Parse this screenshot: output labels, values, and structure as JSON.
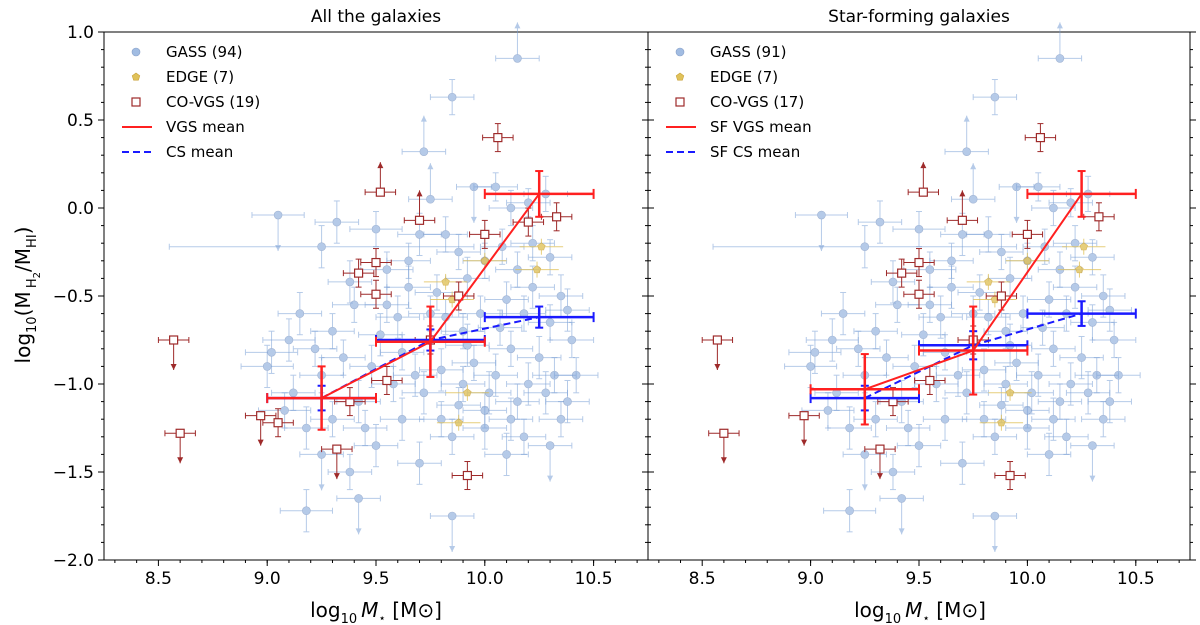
{
  "figure": {
    "ylabel_main": "log",
    "ylabel_sub": "10",
    "ylabel_open": "(M",
    "ylabel_h2": "H",
    "ylabel_h2_sub": "2",
    "ylabel_slash": "/M",
    "ylabel_hi": "HI",
    "ylabel_close": ")",
    "xlabel_main": "log",
    "xlabel_sub": "10",
    "xlabel_mstar": "M",
    "xlabel_star": "⋆",
    "xlabel_unit": " [M",
    "xlabel_odot": "⊙",
    "xlabel_end": "]"
  },
  "colors": {
    "gass": "#7aa0d6",
    "edge": "#e0c25a",
    "covgs": "#9e2a2a",
    "vgs_mean": "#ff2020",
    "cs_mean": "#1a1aff"
  },
  "chart_data": [
    {
      "type": "scatter",
      "title": "All the galaxies",
      "xlabel": "log10 M⋆ [M⊙]",
      "ylabel": "log10(M_H2/M_HI)",
      "xlim": [
        8.25,
        10.75
      ],
      "ylim": [
        -2.0,
        1.0
      ],
      "xticks": [
        "8.5",
        "9.0",
        "9.5",
        "10.0",
        "10.5"
      ],
      "xtick_values": [
        8.5,
        9.0,
        9.5,
        10.0,
        10.5
      ],
      "yticks": [
        "−2.0",
        "−1.5",
        "−1.0",
        "−0.5",
        "0.0",
        "0.5",
        "1.0"
      ],
      "ytick_values": [
        -2.0,
        -1.5,
        -1.0,
        -0.5,
        0.0,
        0.5,
        1.0
      ],
      "legend": {
        "position": "top-left",
        "entries": [
          {
            "label": "GASS (94)",
            "kind": "gass"
          },
          {
            "label": "EDGE (7)",
            "kind": "edge"
          },
          {
            "label": "CO-VGS (19)",
            "kind": "covgs"
          },
          {
            "label": "VGS mean",
            "kind": "vgs_mean"
          },
          {
            "label": "CS mean",
            "kind": "cs_mean"
          }
        ]
      },
      "gass": [
        [
          10.15,
          0.85,
          0.1,
          0.25,
          "up"
        ],
        [
          9.85,
          0.63,
          0.1,
          0.1,
          null
        ],
        [
          9.72,
          0.32,
          0.1,
          0.12,
          "up"
        ],
        [
          9.05,
          -0.04,
          0.12,
          0.1,
          "down"
        ],
        [
          9.32,
          -0.08,
          0.1,
          0.12,
          null
        ],
        [
          9.5,
          -0.12,
          0.12,
          0.1,
          null
        ],
        [
          9.82,
          -0.15,
          0.1,
          0.1,
          null
        ],
        [
          10.05,
          0.12,
          0.1,
          0.08,
          null
        ],
        [
          10.12,
          0.0,
          0.1,
          0.1,
          null
        ],
        [
          10.2,
          0.03,
          0.1,
          0.08,
          null
        ],
        [
          9.95,
          0.12,
          0.08,
          0.1,
          "down"
        ],
        [
          9.25,
          -0.22,
          0.7,
          0.12,
          null
        ],
        [
          9.55,
          -0.35,
          0.12,
          0.1,
          null
        ],
        [
          9.65,
          -0.45,
          0.1,
          0.12,
          null
        ],
        [
          9.75,
          -0.6,
          0.1,
          0.1,
          null
        ],
        [
          9.88,
          -0.25,
          0.1,
          0.1,
          null
        ],
        [
          9.92,
          -0.4,
          0.1,
          0.12,
          null
        ],
        [
          10.0,
          -0.3,
          0.1,
          0.1,
          null
        ],
        [
          10.08,
          -0.22,
          0.1,
          0.1,
          null
        ],
        [
          10.15,
          -0.35,
          0.1,
          0.1,
          null
        ],
        [
          10.22,
          -0.45,
          0.1,
          0.12,
          null
        ],
        [
          10.3,
          -0.28,
          0.1,
          0.1,
          null
        ],
        [
          10.35,
          -0.5,
          0.1,
          0.12,
          null
        ],
        [
          10.18,
          -0.6,
          0.1,
          0.1,
          null
        ],
        [
          9.9,
          -0.7,
          0.1,
          0.1,
          null
        ],
        [
          9.6,
          -0.62,
          0.1,
          0.12,
          null
        ],
        [
          9.4,
          -0.55,
          0.1,
          0.1,
          null
        ],
        [
          9.15,
          -0.6,
          0.1,
          0.12,
          null
        ],
        [
          9.1,
          -0.75,
          0.12,
          0.12,
          null
        ],
        [
          9.22,
          -0.8,
          0.1,
          0.1,
          null
        ],
        [
          9.35,
          -0.85,
          0.1,
          0.1,
          null
        ],
        [
          9.48,
          -0.9,
          0.1,
          0.12,
          null
        ],
        [
          9.62,
          -0.82,
          0.1,
          0.1,
          null
        ],
        [
          9.8,
          -0.92,
          0.1,
          0.12,
          null
        ],
        [
          9.95,
          -0.88,
          0.1,
          0.1,
          null
        ],
        [
          10.05,
          -0.95,
          0.1,
          0.12,
          null
        ],
        [
          10.12,
          -0.8,
          0.1,
          0.1,
          null
        ],
        [
          10.25,
          -0.85,
          0.1,
          0.12,
          null
        ],
        [
          10.32,
          -0.95,
          0.1,
          0.1,
          null
        ],
        [
          10.4,
          -0.75,
          0.1,
          0.1,
          null
        ],
        [
          10.28,
          -1.05,
          0.1,
          0.12,
          null
        ],
        [
          10.15,
          -1.1,
          0.1,
          0.1,
          null
        ],
        [
          10.02,
          -1.05,
          0.1,
          0.12,
          null
        ],
        [
          9.88,
          -1.12,
          0.1,
          0.1,
          null
        ],
        [
          9.72,
          -1.05,
          0.1,
          0.12,
          null
        ],
        [
          9.58,
          -1.0,
          0.1,
          0.1,
          null
        ],
        [
          9.42,
          -1.1,
          0.1,
          0.12,
          null
        ],
        [
          9.3,
          -1.2,
          0.1,
          0.1,
          null
        ],
        [
          9.18,
          -1.25,
          0.1,
          0.12,
          null
        ],
        [
          9.08,
          -1.15,
          0.12,
          0.1,
          null
        ],
        [
          9.25,
          -1.4,
          0.1,
          0.12,
          "down"
        ],
        [
          9.38,
          -1.5,
          0.1,
          0.1,
          null
        ],
        [
          9.42,
          -1.65,
          0.1,
          0.1,
          "down"
        ],
        [
          9.7,
          -1.45,
          0.1,
          0.12,
          null
        ],
        [
          9.85,
          -1.3,
          0.1,
          0.1,
          null
        ],
        [
          10.0,
          -1.25,
          0.1,
          0.12,
          null
        ],
        [
          10.18,
          -1.3,
          0.1,
          0.1,
          null
        ],
        [
          10.3,
          -1.35,
          0.1,
          0.12,
          "down"
        ],
        [
          10.35,
          -1.2,
          0.1,
          0.1,
          null
        ],
        [
          10.1,
          -1.4,
          0.1,
          0.12,
          null
        ],
        [
          9.85,
          -1.75,
          0.1,
          0.1,
          "down"
        ],
        [
          9.18,
          -1.72,
          0.12,
          0.12,
          null
        ],
        [
          9.65,
          -0.3,
          0.1,
          0.1,
          null
        ],
        [
          9.7,
          -0.15,
          0.1,
          0.12,
          null
        ],
        [
          10.1,
          -0.52,
          0.1,
          0.1,
          null
        ],
        [
          10.3,
          -0.65,
          0.1,
          0.1,
          null
        ],
        [
          10.38,
          -0.58,
          0.1,
          0.12,
          null
        ],
        [
          9.98,
          -0.6,
          0.1,
          0.1,
          null
        ],
        [
          9.78,
          -0.48,
          0.1,
          0.1,
          null
        ],
        [
          9.52,
          -0.72,
          0.1,
          0.12,
          null
        ],
        [
          9.3,
          -0.7,
          0.1,
          0.1,
          null
        ],
        [
          9.0,
          -0.9,
          0.12,
          0.12,
          null
        ],
        [
          9.45,
          -1.25,
          0.1,
          0.1,
          null
        ],
        [
          9.62,
          -1.2,
          0.1,
          0.12,
          null
        ],
        [
          9.9,
          -1.0,
          0.1,
          0.1,
          null
        ],
        [
          10.2,
          -1.0,
          0.1,
          0.12,
          null
        ],
        [
          10.07,
          -0.68,
          0.1,
          0.1,
          null
        ],
        [
          9.82,
          -0.62,
          0.1,
          0.1,
          null
        ],
        [
          9.38,
          -0.42,
          0.1,
          0.12,
          null
        ],
        [
          9.25,
          -0.95,
          0.1,
          0.1,
          null
        ],
        [
          9.92,
          -0.78,
          0.1,
          0.12,
          null
        ],
        [
          10.22,
          -0.2,
          0.1,
          0.1,
          null
        ],
        [
          10.28,
          0.08,
          0.1,
          0.1,
          null
        ],
        [
          9.75,
          0.05,
          0.1,
          0.12,
          "up"
        ],
        [
          9.55,
          -0.55,
          0.1,
          0.1,
          null
        ],
        [
          9.68,
          -0.95,
          0.1,
          0.12,
          null
        ],
        [
          10.0,
          -1.15,
          0.1,
          0.1,
          null
        ],
        [
          10.12,
          -1.2,
          0.1,
          0.12,
          null
        ],
        [
          9.8,
          -1.2,
          0.1,
          0.1,
          null
        ],
        [
          9.5,
          -1.35,
          0.1,
          0.12,
          null
        ],
        [
          9.12,
          -1.05,
          0.1,
          0.1,
          null
        ],
        [
          9.02,
          -0.82,
          0.12,
          0.12,
          null
        ],
        [
          10.42,
          -0.95,
          0.1,
          0.1,
          null
        ],
        [
          10.38,
          -1.1,
          0.1,
          0.12,
          null
        ]
      ],
      "edge": [
        [
          9.82,
          -0.42
        ],
        [
          9.85,
          -0.52
        ],
        [
          10.26,
          -0.22
        ],
        [
          10.24,
          -0.35
        ],
        [
          9.92,
          -1.05
        ],
        [
          9.88,
          -1.22
        ],
        [
          10.0,
          -0.3
        ]
      ],
      "covgs": [
        [
          8.57,
          -0.75,
          "down"
        ],
        [
          8.6,
          -1.28,
          "down"
        ],
        [
          8.97,
          -1.18,
          "down"
        ],
        [
          9.05,
          -1.22,
          null
        ],
        [
          9.32,
          -1.37,
          "down"
        ],
        [
          9.38,
          -1.1,
          null
        ],
        [
          9.42,
          -0.37,
          null
        ],
        [
          9.5,
          -0.31,
          null
        ],
        [
          9.52,
          0.09,
          "up"
        ],
        [
          9.5,
          -0.49,
          null
        ],
        [
          9.55,
          -0.98,
          null
        ],
        [
          9.7,
          -0.07,
          "up"
        ],
        [
          9.75,
          -0.75,
          null
        ],
        [
          9.88,
          -0.5,
          null
        ],
        [
          10.0,
          -0.15,
          null
        ],
        [
          10.06,
          0.4,
          null
        ],
        [
          10.2,
          -0.08,
          null
        ],
        [
          10.33,
          -0.05,
          null
        ],
        [
          9.92,
          -1.52,
          null
        ]
      ],
      "vgs_mean": {
        "x": [
          9.25,
          9.75,
          10.25
        ],
        "y": [
          -1.08,
          -0.76,
          0.08
        ],
        "xerr": [
          0.25,
          0.25,
          0.25
        ],
        "yerr": [
          0.18,
          0.2,
          0.13
        ]
      },
      "cs_mean": {
        "x": [
          9.25,
          9.75,
          10.25
        ],
        "y": [
          -1.08,
          -0.75,
          -0.62
        ],
        "xerr": [
          0.25,
          0.25,
          0.25
        ],
        "yerr": [
          0.07,
          0.06,
          0.06
        ]
      }
    },
    {
      "type": "scatter",
      "title": "Star-forming galaxies",
      "xlabel": "log10 M⋆ [M⊙]",
      "ylabel": "log10(M_H2/M_HI)",
      "xlim": [
        8.25,
        10.75
      ],
      "ylim": [
        -2.0,
        1.0
      ],
      "xticks": [
        "8.5",
        "9.0",
        "9.5",
        "10.0",
        "10.5"
      ],
      "xtick_values": [
        8.5,
        9.0,
        9.5,
        10.0,
        10.5
      ],
      "yticks": [
        "−2.0",
        "−1.5",
        "−1.0",
        "−0.5",
        "0.0",
        "0.5",
        "1.0"
      ],
      "ytick_values": [
        -2.0,
        -1.5,
        -1.0,
        -0.5,
        0.0,
        0.5,
        1.0
      ],
      "legend": {
        "position": "top-left",
        "entries": [
          {
            "label": "GASS (91)",
            "kind": "gass"
          },
          {
            "label": "EDGE (7)",
            "kind": "edge"
          },
          {
            "label": "CO-VGS (17)",
            "kind": "covgs"
          },
          {
            "label": "SF VGS mean",
            "kind": "vgs_mean"
          },
          {
            "label": "SF CS mean",
            "kind": "cs_mean"
          }
        ]
      },
      "gass": "same_as_left",
      "edge": "same_as_left",
      "covgs": [
        [
          8.57,
          -0.75,
          "down"
        ],
        [
          8.6,
          -1.28,
          "down"
        ],
        [
          8.97,
          -1.18,
          "down"
        ],
        [
          9.32,
          -1.37,
          "down"
        ],
        [
          9.38,
          -1.1,
          null
        ],
        [
          9.42,
          -0.37,
          null
        ],
        [
          9.5,
          -0.31,
          null
        ],
        [
          9.52,
          0.09,
          "up"
        ],
        [
          9.5,
          -0.49,
          null
        ],
        [
          9.55,
          -0.98,
          null
        ],
        [
          9.7,
          -0.07,
          "up"
        ],
        [
          9.75,
          -0.75,
          null
        ],
        [
          9.88,
          -0.5,
          null
        ],
        [
          10.0,
          -0.15,
          null
        ],
        [
          10.06,
          0.4,
          null
        ],
        [
          10.33,
          -0.05,
          null
        ],
        [
          9.92,
          -1.52,
          null
        ]
      ],
      "vgs_mean": {
        "x": [
          9.25,
          9.75,
          10.25
        ],
        "y": [
          -1.03,
          -0.81,
          0.08
        ],
        "xerr": [
          0.25,
          0.25,
          0.25
        ],
        "yerr": [
          0.2,
          0.25,
          0.13
        ]
      },
      "cs_mean": {
        "x": [
          9.25,
          9.75,
          10.25
        ],
        "y": [
          -1.08,
          -0.78,
          -0.6
        ],
        "xerr": [
          0.25,
          0.25,
          0.25
        ],
        "yerr": [
          0.07,
          0.08,
          0.07
        ]
      }
    }
  ]
}
